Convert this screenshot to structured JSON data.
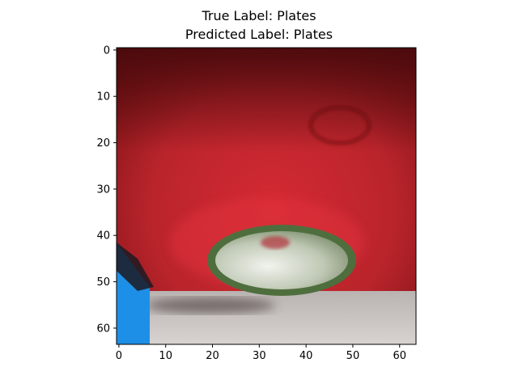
{
  "title_line1": "True Label: Plates",
  "title_line2": "Predicted Label: Plates",
  "chart_data": {
    "type": "heatmap",
    "image_size": [
      64,
      64
    ],
    "true_label": "Plates",
    "predicted_label": "Plates",
    "xlim": [
      -0.5,
      63.5
    ],
    "ylim": [
      63.5,
      -0.5
    ],
    "x_ticks": [
      0,
      10,
      20,
      30,
      40,
      50,
      60
    ],
    "y_ticks": [
      0,
      10,
      20,
      30,
      40,
      50,
      60
    ],
    "grid": false
  },
  "colors": {
    "red_dark": "#6e0f12",
    "red_mid": "#b9242b",
    "red_bright": "#d52a34",
    "floor": "#cfcac7",
    "plate_rim": "#4f6e3d",
    "plate_face": "#c9d2c1",
    "blue_object": "#1e8fe6"
  }
}
